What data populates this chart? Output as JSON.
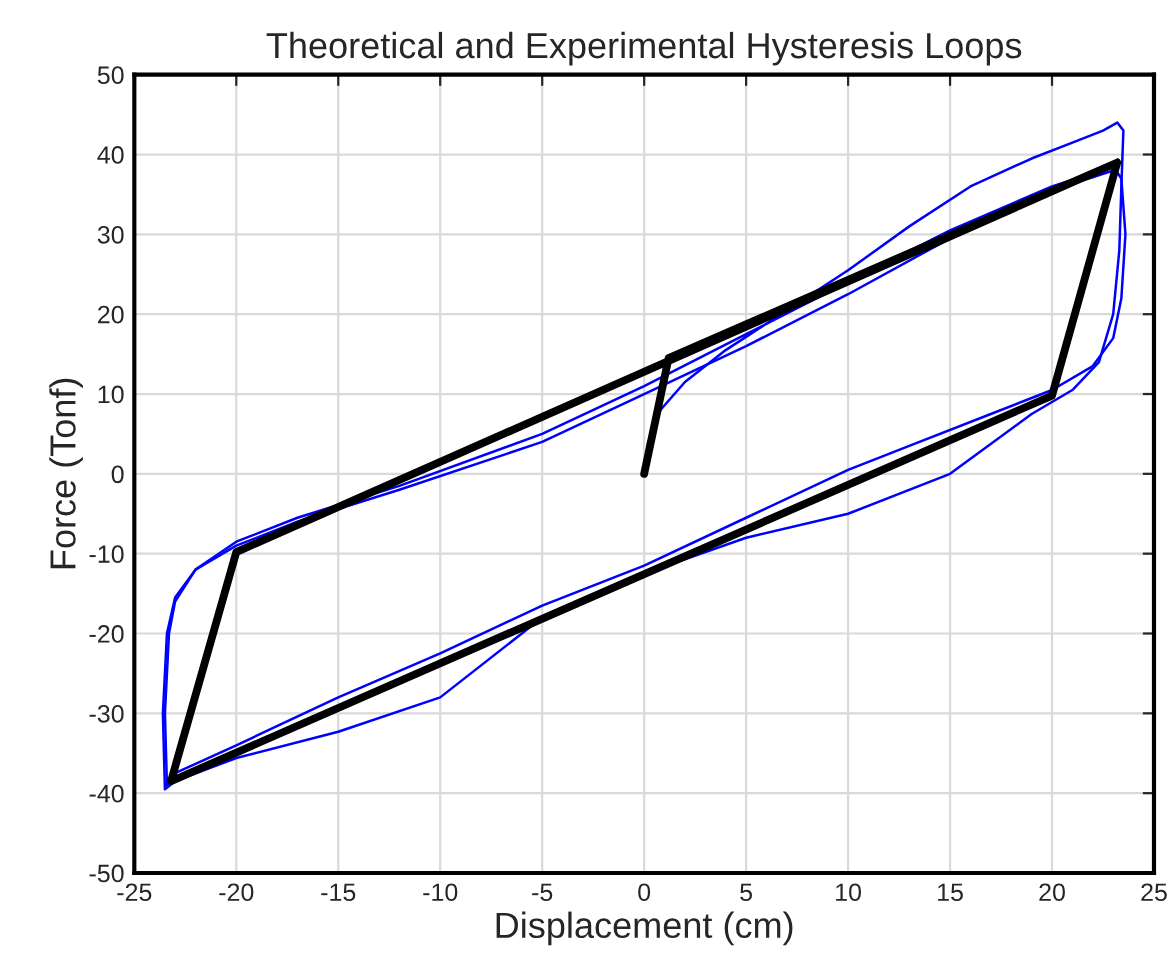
{
  "chart_data": {
    "type": "line",
    "title": "Theoretical and Experimental Hysteresis Loops",
    "xlabel": "Displacement (cm)",
    "ylabel": "Force (Tonf)",
    "xlim": [
      -25,
      25
    ],
    "ylim": [
      -50,
      50
    ],
    "xticks": [
      -25,
      -20,
      -15,
      -10,
      -5,
      0,
      5,
      10,
      15,
      20,
      25
    ],
    "yticks": [
      -50,
      -40,
      -30,
      -20,
      -10,
      0,
      10,
      20,
      30,
      40,
      50
    ],
    "grid": true,
    "series": [
      {
        "color": "#0000ff",
        "x": [
          0,
          0.2,
          0.8,
          2,
          4,
          7,
          10,
          13,
          16,
          19,
          21,
          22.5,
          23.2,
          23.5,
          23.4,
          23.3,
          23,
          22.3,
          21,
          19,
          15,
          10,
          5,
          0,
          -5,
          -10,
          -15,
          -20,
          -23,
          -23.5,
          -23.6,
          -23.4,
          -23,
          -22,
          -20,
          -17,
          -12,
          -5,
          0,
          5,
          10,
          15,
          20,
          23
        ],
        "values": [
          0,
          4,
          8,
          11.5,
          15.5,
          20.5,
          25.5,
          31,
          36,
          39.5,
          41.5,
          43,
          44,
          43,
          36,
          28,
          20,
          14,
          10.5,
          7.5,
          0,
          -5,
          -8,
          -12.5,
          -18,
          -28,
          -32.3,
          -35.6,
          -38.5,
          -39.5,
          -30,
          -20,
          -15.5,
          -12,
          -8.5,
          -5.5,
          -1.5,
          5,
          11,
          17.5,
          24,
          30.5,
          36,
          38.5
        ]
      },
      {
        "color": "#0000ff",
        "x": [
          23,
          23.4,
          23.6,
          23.4,
          23,
          22,
          20,
          17,
          13,
          10,
          5,
          0,
          -5,
          -10,
          -15,
          -20,
          -23,
          -23.4,
          -23.5,
          -23.3,
          -23,
          -22,
          -20,
          -17,
          -12,
          -5,
          0,
          5,
          10,
          15,
          20,
          23
        ],
        "values": [
          38.5,
          37,
          30,
          22,
          17,
          13.5,
          10.5,
          7.5,
          3.5,
          0.5,
          -5.5,
          -11.5,
          -16.5,
          -22.5,
          -28,
          -34,
          -37.5,
          -39,
          -30,
          -20,
          -16,
          -12,
          -9,
          -6,
          -2,
          4,
          10,
          16,
          22.5,
          29.5,
          35.5,
          38
        ]
      },
      {
        "color": "#000000",
        "x": [
          0,
          1.2,
          23.2,
          20,
          -23.2,
          -20,
          23.2
        ],
        "values": [
          0,
          14.5,
          39,
          9.8,
          -38.5,
          -9.8,
          39
        ]
      }
    ]
  }
}
